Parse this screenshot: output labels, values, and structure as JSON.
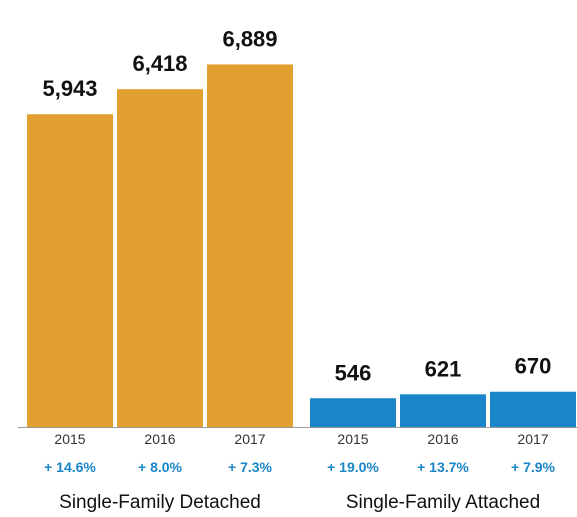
{
  "chart_data": {
    "type": "bar",
    "title": "",
    "xlabel": "",
    "ylabel": "",
    "ylim": [
      0,
      7600
    ],
    "grid": false,
    "legend": "none",
    "groups": [
      {
        "label": "Single-Family Detached",
        "color": "#E1A030",
        "categories": [
          "2015",
          "2016",
          "2017"
        ],
        "values": [
          5943,
          6418,
          6889
        ],
        "value_labels": [
          "5,943",
          "6,418",
          "6,889"
        ],
        "changes": [
          "+ 14.6%",
          "+ 8.0%",
          "+ 7.3%"
        ]
      },
      {
        "label": "Single-Family Attached",
        "color": "#1A85C8",
        "categories": [
          "2015",
          "2016",
          "2017"
        ],
        "values": [
          546,
          621,
          670
        ],
        "value_labels": [
          "546",
          "621",
          "670"
        ],
        "changes": [
          "+ 19.0%",
          "+ 13.7%",
          "+ 7.9%"
        ]
      }
    ],
    "change_color": "#1A85C8",
    "axis_color": "#999999"
  }
}
